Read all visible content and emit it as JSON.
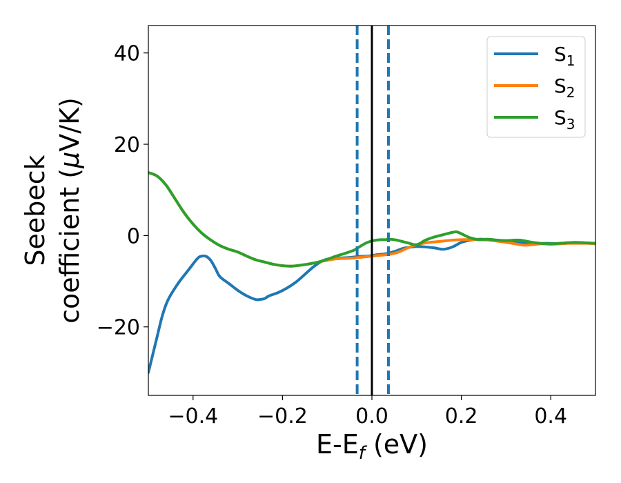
{
  "chart_data": {
    "type": "line",
    "title": "",
    "xlabel": {
      "main": "E-E",
      "sub": "f",
      "suffix": " (eV)"
    },
    "ylabel": {
      "line1": "Seebeck",
      "line2": "coefficient  (",
      "mu": "μ",
      "line2_end": "V/K)"
    },
    "xlim": [
      -0.5,
      0.5
    ],
    "ylim": [
      -35,
      46
    ],
    "xticks": [
      -0.4,
      -0.2,
      0.0,
      0.2,
      0.4
    ],
    "xtick_labels": [
      "−0.4",
      "−0.2",
      "0.0",
      "0.2",
      "0.4"
    ],
    "yticks": [
      -20,
      0,
      20,
      40
    ],
    "ytick_labels": [
      "−20",
      "0",
      "20",
      "40"
    ],
    "grid": false,
    "legend_position": "top-right",
    "vlines": [
      {
        "x": -0.033,
        "style": "dashed",
        "color": "#1f77b4"
      },
      {
        "x": 0.0,
        "style": "solid",
        "color": "#000000"
      },
      {
        "x": 0.037,
        "style": "dashed",
        "color": "#1f77b4"
      }
    ],
    "series": [
      {
        "name": "S",
        "sub": "1",
        "color": "#1f77b4",
        "x": [
          -0.5,
          -0.49,
          -0.48,
          -0.47,
          -0.46,
          -0.45,
          -0.43,
          -0.41,
          -0.39,
          -0.38,
          -0.37,
          -0.36,
          -0.35,
          -0.34,
          -0.32,
          -0.3,
          -0.28,
          -0.26,
          -0.25,
          -0.24,
          -0.23,
          -0.21,
          -0.19,
          -0.17,
          -0.15,
          -0.13,
          -0.11,
          -0.09,
          -0.07,
          -0.05,
          -0.03,
          -0.01,
          0.0,
          0.01,
          0.03,
          0.05,
          0.07,
          0.09,
          0.1,
          0.12,
          0.14,
          0.16,
          0.18,
          0.2,
          0.22,
          0.24,
          0.26,
          0.28,
          0.3,
          0.33,
          0.36,
          0.39,
          0.42,
          0.45,
          0.48,
          0.5
        ],
        "y": [
          -30,
          -26,
          -22,
          -18,
          -15,
          -13,
          -10,
          -7.5,
          -5,
          -4.5,
          -4.6,
          -5.5,
          -7.2,
          -9,
          -10.5,
          -12,
          -13.2,
          -14,
          -14,
          -13.8,
          -13.2,
          -12.5,
          -11.5,
          -10.2,
          -8.5,
          -6.8,
          -5.5,
          -5.0,
          -4.9,
          -4.8,
          -4.6,
          -4.5,
          -4.4,
          -4.2,
          -4.0,
          -3.5,
          -2.8,
          -2.5,
          -2.4,
          -2.5,
          -2.7,
          -3.0,
          -2.5,
          -1.5,
          -1.0,
          -0.8,
          -0.9,
          -1.1,
          -1.3,
          -1.6,
          -1.8,
          -1.7,
          -1.8,
          -1.6,
          -1.6,
          -1.8
        ]
      },
      {
        "name": "S",
        "sub": "2",
        "color": "#ff7f0e",
        "x": [
          -0.5,
          -0.48,
          -0.46,
          -0.44,
          -0.42,
          -0.4,
          -0.38,
          -0.36,
          -0.34,
          -0.32,
          -0.3,
          -0.28,
          -0.26,
          -0.24,
          -0.22,
          -0.2,
          -0.18,
          -0.16,
          -0.14,
          -0.12,
          -0.1,
          -0.08,
          -0.06,
          -0.04,
          -0.02,
          0.0,
          0.02,
          0.04,
          0.06,
          0.08,
          0.1,
          0.12,
          0.14,
          0.16,
          0.18,
          0.2,
          0.22,
          0.24,
          0.26,
          0.28,
          0.3,
          0.32,
          0.34,
          0.36,
          0.38,
          0.4,
          0.42,
          0.44,
          0.46,
          0.48,
          0.5
        ],
        "y": [
          13.8,
          13.0,
          11.0,
          8.0,
          5.0,
          2.5,
          0.5,
          -1.0,
          -2.2,
          -3.0,
          -3.6,
          -4.5,
          -5.3,
          -5.8,
          -6.3,
          -6.6,
          -6.7,
          -6.5,
          -6.2,
          -5.8,
          -5.4,
          -5.1,
          -5.0,
          -4.9,
          -4.7,
          -4.5,
          -4.3,
          -4.1,
          -3.6,
          -2.7,
          -2.0,
          -1.6,
          -1.4,
          -1.2,
          -1.0,
          -0.9,
          -0.9,
          -0.9,
          -1.0,
          -1.2,
          -1.5,
          -1.8,
          -2.1,
          -2.0,
          -1.8,
          -1.9,
          -1.8,
          -1.7,
          -1.7,
          -1.7,
          -1.8
        ]
      },
      {
        "name": "S",
        "sub": "3",
        "color": "#2ca02c",
        "x": [
          -0.5,
          -0.48,
          -0.46,
          -0.44,
          -0.42,
          -0.4,
          -0.38,
          -0.36,
          -0.34,
          -0.32,
          -0.3,
          -0.28,
          -0.26,
          -0.24,
          -0.22,
          -0.2,
          -0.18,
          -0.16,
          -0.14,
          -0.12,
          -0.1,
          -0.08,
          -0.06,
          -0.04,
          -0.03,
          -0.02,
          -0.01,
          0.0,
          0.01,
          0.02,
          0.03,
          0.04,
          0.05,
          0.06,
          0.08,
          0.1,
          0.12,
          0.14,
          0.16,
          0.18,
          0.19,
          0.2,
          0.22,
          0.24,
          0.26,
          0.28,
          0.3,
          0.33,
          0.36,
          0.39,
          0.42,
          0.45,
          0.48,
          0.5
        ],
        "y": [
          13.8,
          13.0,
          11.0,
          8.0,
          5.0,
          2.5,
          0.5,
          -1.0,
          -2.2,
          -3.0,
          -3.6,
          -4.5,
          -5.3,
          -5.8,
          -6.3,
          -6.6,
          -6.7,
          -6.5,
          -6.2,
          -5.8,
          -5.2,
          -4.5,
          -3.9,
          -3.2,
          -2.6,
          -2.0,
          -1.5,
          -1.2,
          -1.0,
          -0.9,
          -0.9,
          -0.8,
          -0.9,
          -1.1,
          -1.6,
          -2.0,
          -1.0,
          -0.3,
          0.2,
          0.7,
          0.8,
          0.4,
          -0.5,
          -0.9,
          -0.8,
          -1.0,
          -1.1,
          -1.0,
          -1.5,
          -1.8,
          -1.7,
          -1.5,
          -1.6,
          -1.7
        ]
      }
    ]
  }
}
